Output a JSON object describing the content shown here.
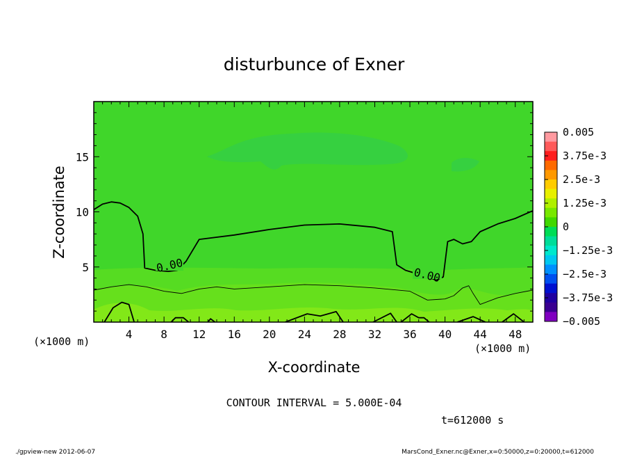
{
  "chart_data": {
    "type": "heatmap",
    "title": "disturbunce of Exner",
    "xlabel": "X-coordinate",
    "ylabel": "Z-coordinate",
    "x_unit": "(×1000 m)",
    "y_unit": "(×1000 m)",
    "xlim": [
      0,
      50
    ],
    "ylim": [
      0,
      20
    ],
    "x_ticks": [
      "4",
      "8",
      "12",
      "16",
      "20",
      "24",
      "28",
      "32",
      "36",
      "40",
      "44",
      "48"
    ],
    "y_ticks": [
      "5",
      "10",
      "15"
    ],
    "colorbar": {
      "labels": [
        "0.005",
        "3.75e-3",
        "2.5e-3",
        "1.25e-3",
        "0",
        "−1.25e-3",
        "−2.5e-3",
        "−3.75e-3",
        "−0.005"
      ],
      "colors_top_to_bottom": [
        "#ff9aa0",
        "#ff5a5a",
        "#ff1e1e",
        "#ff6a00",
        "#ff9900",
        "#ffcc00",
        "#e8f000",
        "#b0f000",
        "#78e800",
        "#40d800",
        "#00dd55",
        "#00dd99",
        "#00e8cc",
        "#00c8f0",
        "#0090ff",
        "#0050f0",
        "#0010d0",
        "#2000a0",
        "#3a0090",
        "#8000c0"
      ]
    },
    "field_colors": {
      "upper_region": "#40d62a",
      "lower_band_1": "#56dc22",
      "lower_band_2": "#66e01c",
      "lower_band_3": "#82e818",
      "faint_negative_patch": "#36d040"
    },
    "contour_level_labels": [
      "0.00",
      "0.00"
    ],
    "contour_zero_line": {
      "x": [
        0,
        1,
        2,
        3,
        4,
        5,
        5.6,
        5.8,
        7,
        8.5,
        9.5,
        10.5,
        12,
        16,
        20,
        24,
        28,
        32,
        34,
        34.5,
        35.5,
        38,
        39,
        39.8,
        40.3,
        41,
        42,
        43,
        44,
        46,
        48,
        50
      ],
      "y": [
        10.2,
        10.7,
        10.9,
        10.8,
        10.4,
        9.6,
        8,
        4.9,
        4.7,
        4.6,
        4.7,
        5.5,
        7.5,
        7.9,
        8.4,
        8.8,
        8.9,
        8.6,
        8.2,
        5.2,
        4.7,
        4.1,
        3.8,
        4.1,
        7.3,
        7.5,
        7.1,
        7.3,
        8.2,
        8.9,
        9.4,
        10.1
      ]
    },
    "contour_lower_lines": [
      {
        "x": [
          0,
          2,
          4,
          6,
          8,
          10,
          12,
          14,
          16,
          20,
          24,
          28,
          32,
          36,
          38,
          40,
          41,
          42,
          42.7,
          43.2,
          44,
          46,
          48,
          50
        ],
        "y": [
          2.9,
          3.2,
          3.4,
          3.2,
          2.8,
          2.6,
          3.0,
          3.2,
          3.0,
          3.2,
          3.4,
          3.3,
          3.1,
          2.8,
          2.0,
          2.1,
          2.4,
          3.1,
          3.3,
          2.6,
          1.6,
          2.2,
          2.6,
          2.9
        ]
      },
      {
        "x": [
          1.2,
          2.2,
          3.2,
          4.0,
          4.6
        ],
        "y": [
          0,
          1.3,
          1.8,
          1.6,
          0
        ]
      },
      {
        "x": [
          8.8,
          9.3,
          10.2,
          10.8
        ],
        "y": [
          0,
          0.4,
          0.4,
          0
        ]
      },
      {
        "x": [
          13.0,
          13.3,
          13.8
        ],
        "y": [
          0,
          0.3,
          0
        ]
      },
      {
        "x": [
          21.8,
          24.3,
          25.8,
          27.6,
          28.4
        ],
        "y": [
          0,
          0.75,
          0.55,
          0.95,
          0
        ]
      },
      {
        "x": [
          31.8,
          33.8,
          34.5
        ],
        "y": [
          0,
          0.8,
          0
        ]
      },
      {
        "x": [
          35.0,
          36.2,
          37.0,
          37.6,
          38.2
        ],
        "y": [
          0,
          0.75,
          0.4,
          0.4,
          0
        ]
      },
      {
        "x": [
          41.4,
          43.2,
          44.6
        ],
        "y": [
          0,
          0.5,
          0
        ]
      },
      {
        "x": [
          46.5,
          47.8,
          49.0
        ],
        "y": [
          0,
          0.75,
          0
        ]
      }
    ],
    "grid": false,
    "legend": "colorbar-right"
  },
  "texts": {
    "contour_interval": "CONTOUR INTERVAL = 5.000E-04",
    "time": "t=612000 s",
    "footer_left": "./gpview-new   2012-06-07",
    "footer_right": "MarsCond_Exner.nc@Exner,x=0:50000,z=0:20000,t=612000"
  }
}
